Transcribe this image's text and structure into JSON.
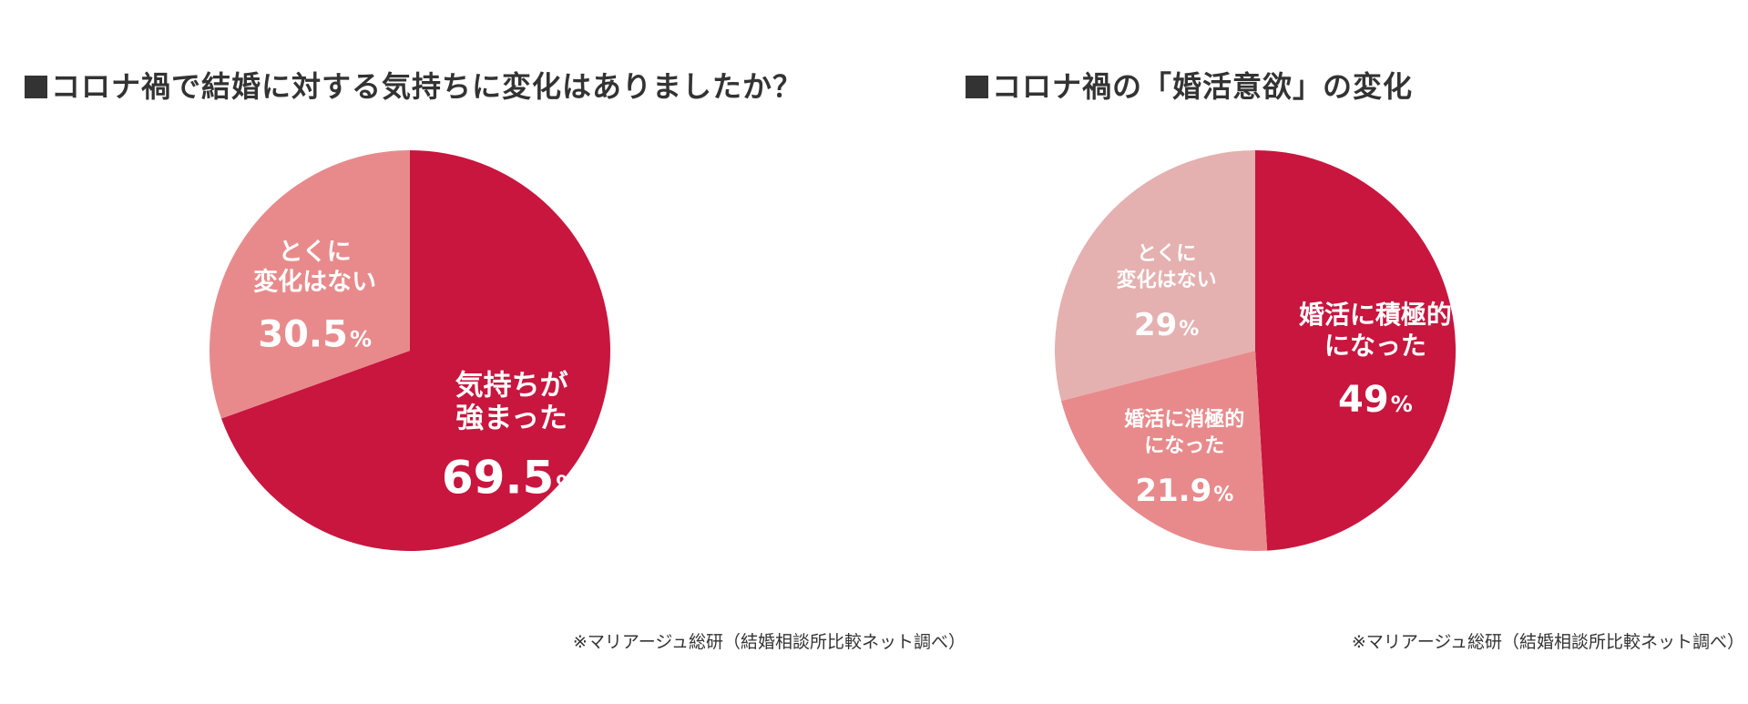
{
  "chart_data": [
    {
      "type": "pie",
      "title": "コロナ禍で結婚に対する気持ちに変化はありましたか？",
      "slices": [
        {
          "label_lines": [
            "気持ちが",
            "強まった"
          ],
          "value": 69.5,
          "value_text": "69.5",
          "unit": "%",
          "color": "#c8163e"
        },
        {
          "label_lines": [
            "とくに",
            "変化はない"
          ],
          "value": 30.5,
          "value_text": "30.5",
          "unit": "%",
          "color": "#e88a8b"
        }
      ],
      "source": "※マリアージュ総研（結婚相談所比較ネット調べ）"
    },
    {
      "type": "pie",
      "title": "コロナ禍の「婚活意欲」の変化",
      "slices": [
        {
          "label_lines": [
            "婚活に積極的",
            "になった"
          ],
          "value": 49,
          "value_text": "49",
          "unit": "%",
          "color": "#c8163e"
        },
        {
          "label_lines": [
            "婚活に消極的",
            "になった"
          ],
          "value": 21.9,
          "value_text": "21.9",
          "unit": "%",
          "color": "#e88a8b"
        },
        {
          "label_lines": [
            "とくに",
            "変化はない"
          ],
          "value": 29,
          "value_text": "29",
          "unit": "%",
          "color": "#e4b1b0"
        }
      ],
      "source": "※マリアージュ総研（結婚相談所比較ネット調べ）"
    }
  ]
}
